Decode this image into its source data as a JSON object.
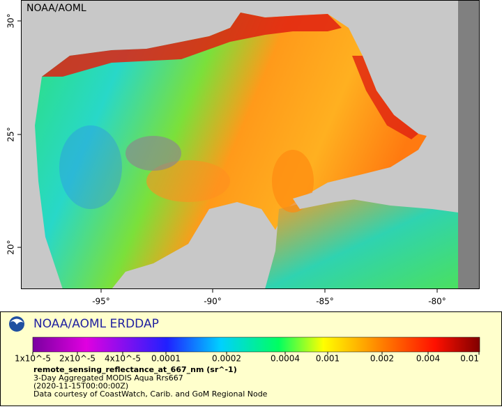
{
  "map": {
    "corner_label": "NOAA/AOML",
    "lon_ticks": [
      "-95°",
      "-90°",
      "-85°",
      "-80°"
    ],
    "lat_ticks": [
      "20°",
      "25°",
      "30°"
    ]
  },
  "legend": {
    "title": "NOAA/AOML ERDDAP",
    "colorbar_labels": [
      "1x10^-5",
      "2x10^-5",
      "4x10^-5",
      "0.0001",
      "0.0002",
      "0.0004",
      "0.001",
      "0.002",
      "0.004",
      "0.01"
    ],
    "variable": "remote_sensing_reflectance_at_667_nm (sr^-1)",
    "lines": [
      "3-Day Aggregated MODIS Aqua Rrs667",
      "(2020-11-15T00:00:00Z)",
      "Data courtesy of CoastWatch, Carib. and GoM Regional Node"
    ]
  }
}
